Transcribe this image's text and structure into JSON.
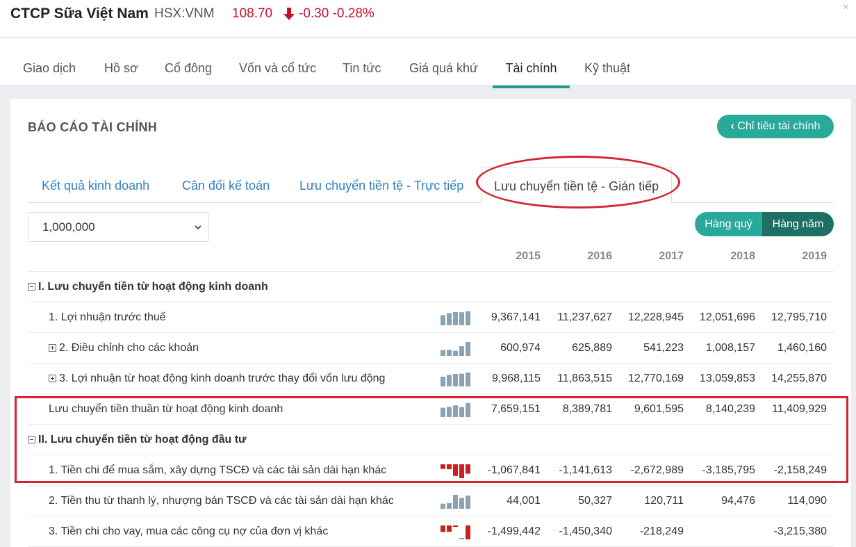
{
  "header": {
    "company": "CTCP Sữa Việt Nam",
    "exchange": "HSX:VNM",
    "price": "108.70",
    "change": "-0.30 -0.28%",
    "close": "×"
  },
  "nav": [
    "Giao dịch",
    "Hồ sơ",
    "Cổ đông",
    "Vốn và cổ tức",
    "Tin tức",
    "Giá quá khứ",
    "Tài chính",
    "Kỹ thuật"
  ],
  "nav_active": "Tài chính",
  "panel": {
    "title": "BÁO CÁO TÀI CHÍNH",
    "button": "Chỉ tiêu tài chính",
    "subtabs": [
      "Kết quả kinh doanh",
      "Cân đối kế toán",
      "Lưu chuyển tiền tệ - Trực tiếp",
      "Lưu chuyển tiền tệ - Gián tiếp"
    ],
    "subtab_active": "Lưu chuyển tiền tệ - Gián tiếp",
    "unit": "1,000,000",
    "toggle": [
      "Hàng quý",
      "Hàng năm"
    ]
  },
  "table": {
    "years": [
      "2015",
      "2016",
      "2017",
      "2018",
      "2019"
    ],
    "rows": [
      {
        "label": "I. Lưu chuyển tiền từ hoạt động kinh doanh",
        "type": "section",
        "values": []
      },
      {
        "label": "1. Lợi nhuận trước thuế",
        "type": "item",
        "values": [
          "9,367,141",
          "11,237,627",
          "12,228,945",
          "12,051,696",
          "12,795,710"
        ]
      },
      {
        "label": "2. Điều chỉnh cho các khoản",
        "type": "expand",
        "values": [
          "600,974",
          "625,889",
          "541,223",
          "1,008,157",
          "1,460,160"
        ]
      },
      {
        "label": "3. Lợi nhuận từ hoạt động kinh doanh trước thay đổi vốn lưu động",
        "type": "expand",
        "values": [
          "9,968,115",
          "11,863,515",
          "12,770,169",
          "13,059,853",
          "14,255,870"
        ]
      },
      {
        "label": "Lưu chuyển tiền thuần từ hoạt động kinh doanh",
        "type": "item",
        "values": [
          "7,659,151",
          "8,389,781",
          "9,601,595",
          "8,140,239",
          "11,409,929"
        ]
      },
      {
        "label": "II. Lưu chuyển tiền từ hoạt động đầu tư",
        "type": "section",
        "values": []
      },
      {
        "label": "1. Tiền chi để mua sắm, xây dựng TSCĐ và các tài sản dài hạn khác",
        "type": "item",
        "values": [
          "-1,067,841",
          "-1,141,613",
          "-2,672,989",
          "-3,185,795",
          "-2,158,249"
        ]
      },
      {
        "label": "2. Tiền thu từ thanh lý, nhượng bán TSCĐ và các tài sản dài hạn khác",
        "type": "item",
        "values": [
          "44,001",
          "50,327",
          "120,711",
          "94,476",
          "114,090"
        ]
      },
      {
        "label": "3. Tiền chi cho vay, mua các công cụ nợ của đơn vị khác",
        "type": "item",
        "values": [
          "-1,499,442",
          "-1,450,340",
          "-218,249",
          "",
          "-3,215,380"
        ]
      }
    ]
  },
  "colors": {
    "accent": "#29a99a",
    "accent_dark": "#1e6f64",
    "negative": "#c8102e",
    "spark_pos": "#8aa3b4",
    "spark_neg": "#cc1f1f",
    "highlight": "#d9202f"
  }
}
